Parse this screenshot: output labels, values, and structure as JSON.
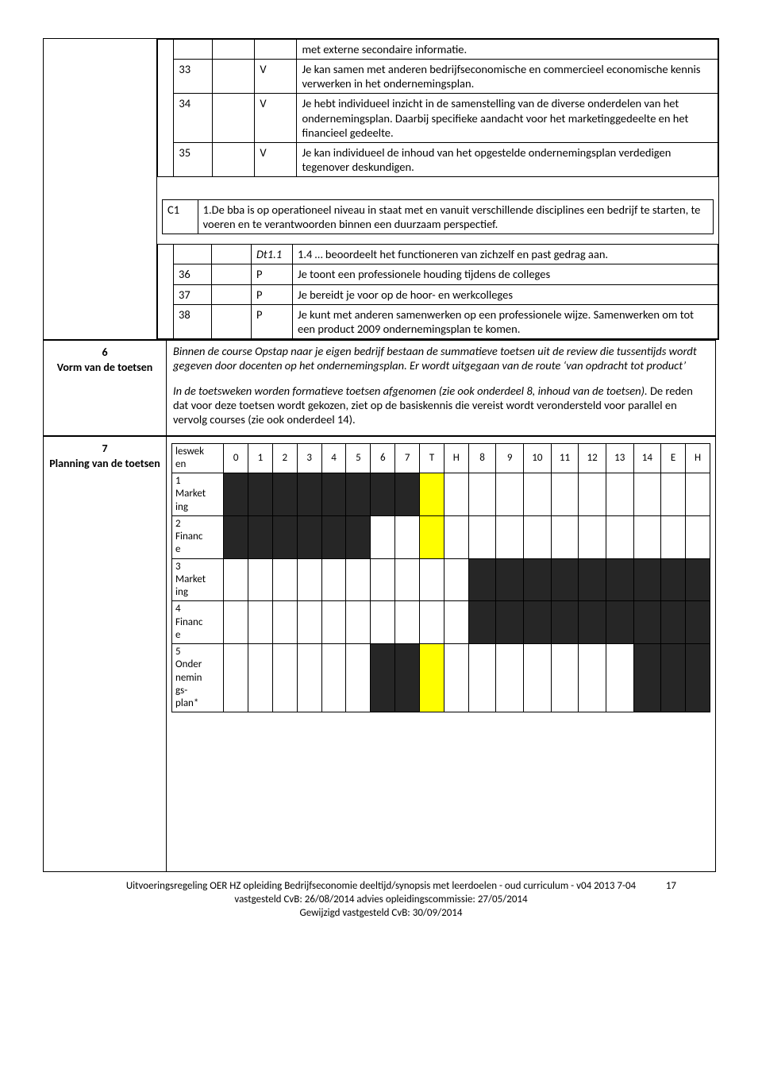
{
  "top_table": {
    "intro_line": "met externe secondaire informatie.",
    "rows": [
      {
        "num": "33",
        "letter": "V",
        "desc": "Je kan samen met anderen bedrijfseconomische en commercieel economische kennis verwerken in het ondernemingsplan."
      },
      {
        "num": "34",
        "letter": "V",
        "desc": "Je hebt individueel inzicht in de samenstelling van de diverse onderdelen van het ondernemingsplan. Daarbij specifieke aandacht voor het marketinggedeelte en het financieel gedeelte."
      },
      {
        "num": "35",
        "letter": "V",
        "desc": "Je kan individueel de inhoud van het opgestelde ondernemingsplan verdedigen tegenover deskundigen."
      }
    ]
  },
  "c1": {
    "label": "C1",
    "text": "1.De bba is op operationeel niveau in staat met en vanuit verschillende disciplines een bedrijf te starten, te voeren en te verantwoorden binnen een duurzaam perspectief."
  },
  "dt": {
    "dt_label": "Dt1.1",
    "dt_text": "1.4 … beoordeelt het functioneren van zichzelf en past gedrag aan.",
    "rows": [
      {
        "num": "36",
        "letter": "P",
        "desc": "Je toont een professionele houding tijdens de colleges"
      },
      {
        "num": "37",
        "letter": "P",
        "desc": "Je bereidt je voor op de hoor- en werkcolleges"
      },
      {
        "num": "38",
        "letter": "P",
        "desc": "Je kunt met anderen samenwerken op een professionele wijze. Samenwerken om tot een product 2009 ondernemingsplan te komen."
      }
    ]
  },
  "section6": {
    "num": "6",
    "label": "Vorm van de toetsen",
    "para1": "Binnen de course Opstap naar je eigen bedrijf bestaan de summatieve toetsen uit de review die tussentijds wordt gegeven door docenten op het ondernemingsplan. Er wordt uitgegaan van de route ‘van opdracht tot product’",
    "para2a": "In de toetsweken worden formatieve toetsen afgenomen (zie ook onderdeel 8, inhoud van de toetsen).",
    "para2b": " De reden dat voor deze toetsen wordt gekozen, ziet op de basiskennis die vereist wordt verondersteld voor parallel en vervolg courses (zie ook onderdeel 14)."
  },
  "section7": {
    "num": "7",
    "label": "Planning van de toetsen",
    "row_header_label": "leswek\nen",
    "headers": [
      "0",
      "1",
      "2",
      "3",
      "4",
      "5",
      "6",
      "7",
      "T",
      "H",
      "8",
      "9",
      "10",
      "11",
      "12",
      "13",
      "14",
      "E",
      "H"
    ],
    "rows": [
      {
        "label": "1\nMarket\ning",
        "cells": [
          "b",
          "b",
          "b",
          "b",
          "b",
          "b",
          "b",
          "b",
          "y",
          "",
          "",
          "",
          "",
          "",
          "",
          "",
          "",
          "",
          ""
        ]
      },
      {
        "label": "2\nFinanc\ne",
        "cells": [
          "b",
          "b",
          "b",
          "b",
          "b",
          "b",
          "",
          "",
          "y",
          "",
          "",
          "",
          "",
          "",
          "",
          "",
          "",
          "",
          ""
        ]
      },
      {
        "label": "3\nMarket\ning",
        "cells": [
          "",
          "",
          "",
          "",
          "",
          "",
          "",
          "",
          "",
          "",
          "b",
          "b",
          "b",
          "b",
          "b",
          "b",
          "b",
          "b",
          "b"
        ]
      },
      {
        "label": "4\nFinanc\ne",
        "cells": [
          "",
          "",
          "",
          "",
          "",
          "",
          "",
          "",
          "",
          "",
          "b",
          "b",
          "b",
          "b",
          "b",
          "b",
          "b",
          "b",
          "b"
        ]
      },
      {
        "label": "5\nOnder\nnemin\ngs-\nplan*",
        "cells": [
          "",
          "",
          "",
          "",
          "",
          "",
          "b",
          "b",
          "y",
          "",
          "",
          "",
          "",
          "",
          "",
          "",
          "b",
          "b",
          "b"
        ]
      }
    ],
    "colors": {
      "b": "#262626",
      "y": "#ffff00",
      "": "#ffffff"
    }
  },
  "footer": {
    "page": "17",
    "line1": "Uitvoeringsregeling OER HZ opleiding Bedrijfseconomie deeltijd/synopsis met leerdoelen - oud curriculum -  v04 2013 7-04",
    "line2": "vastgesteld CvB: 26/08/2014  advies opleidingscommissie: 27/05/2014",
    "line3": "Gewijzigd vastgesteld CvB: 30/09/2014"
  }
}
